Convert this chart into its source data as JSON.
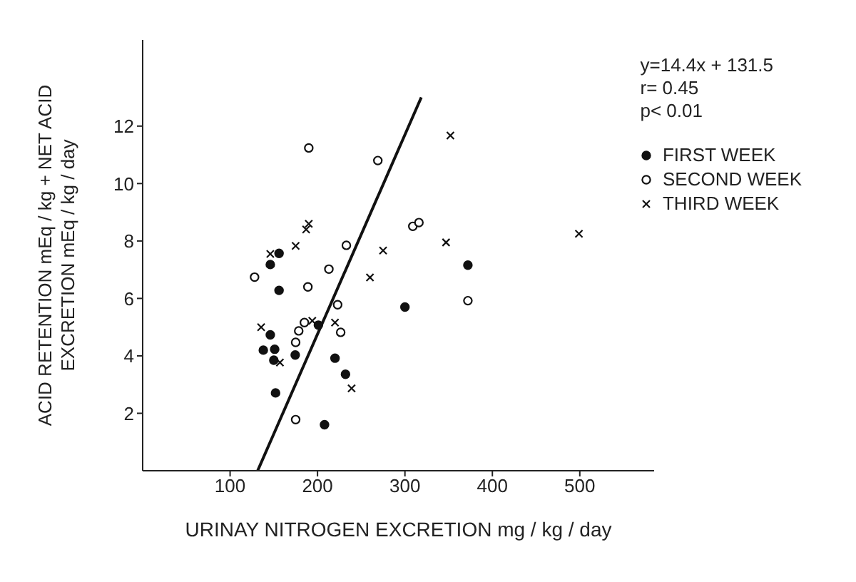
{
  "chart_data": {
    "type": "scatter",
    "xlabel": "URINAY NITROGEN EXCRETION    mg / kg / day",
    "ylabel": "ACID RETENTION mEq / kg + NET ACID EXCRETION mEq / kg / day",
    "annotations": [
      "y=14.4x + 131.5",
      "r= 0.45",
      "p< 0.01"
    ],
    "xlim": [
      0,
      585
    ],
    "xticks": [
      100,
      200,
      300,
      400,
      500
    ],
    "ylim": [
      0,
      15
    ],
    "yticks": [
      2,
      4,
      6,
      8,
      10,
      12
    ],
    "legend": "top right",
    "series": [
      {
        "name": "FIRST WEEK",
        "color": "#111111",
        "marker": "circle",
        "x": [
          156,
          146,
          156,
          146,
          138,
          151,
          150,
          152,
          208,
          174.5,
          201,
          300,
          220,
          232,
          372
        ],
        "values": [
          7.57,
          7.18,
          6.28,
          4.73,
          4.2,
          4.23,
          3.85,
          2.71,
          1.6,
          4.03,
          5.07,
          5.7,
          3.92,
          3.36,
          7.16
        ]
      },
      {
        "name": "SECOND WEEK",
        "color": "#111111",
        "marker": "circle",
        "x": [
          190,
          128,
          213,
          189,
          175,
          175,
          178.5,
          185,
          269,
          309,
          316,
          233,
          223,
          226.5,
          372
        ],
        "values": [
          11.24,
          6.74,
          7.02,
          6.4,
          1.78,
          4.47,
          4.87,
          5.16,
          10.8,
          8.51,
          8.64,
          7.85,
          5.78,
          4.82,
          5.92
        ]
      },
      {
        "name": "THIRD WEEK",
        "color": "#111111",
        "marker": "cross",
        "x": [
          187,
          190,
          146,
          175,
          135.5,
          157,
          194,
          352,
          347,
          275,
          260,
          220,
          239,
          499
        ],
        "values": [
          8.4,
          8.6,
          7.55,
          7.83,
          5.0,
          3.77,
          5.22,
          11.67,
          7.95,
          7.67,
          6.73,
          5.16,
          2.87,
          8.25
        ]
      },
      {
        "type": "line",
        "color": "#111111",
        "marker": "none",
        "line_style": "solid",
        "x": [
          131.5,
          318.7
        ],
        "values": [
          0,
          13
        ]
      }
    ]
  }
}
